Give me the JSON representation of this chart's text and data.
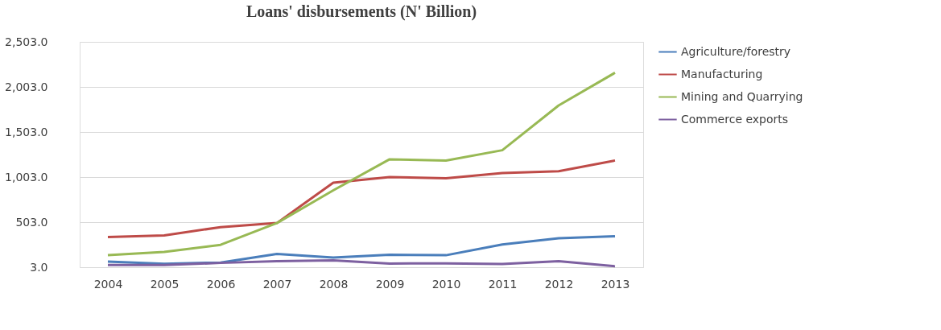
{
  "chart_data": {
    "type": "line",
    "title": "Loans' disbursements (N' Billion)",
    "categories": [
      "2004",
      "2005",
      "2006",
      "2007",
      "2008",
      "2009",
      "2010",
      "2011",
      "2012",
      "2013"
    ],
    "series": [
      {
        "name": "Agriculture/forestry",
        "color": "#4a7ebb",
        "values": [
          65,
          41,
          55,
          151,
          110,
          141,
          136,
          255,
          325,
          346
        ]
      },
      {
        "name": "Manufacturing",
        "color": "#be4b48",
        "values": [
          338,
          355,
          448,
          493,
          941,
          1003,
          990,
          1047,
          1068,
          1187
        ]
      },
      {
        "name": "Mining and Quarrying",
        "color": "#98b954",
        "values": [
          138,
          172,
          251,
          493,
          855,
          1200,
          1186,
          1301,
          1798,
          2160
        ]
      },
      {
        "name": "Commerce exports",
        "color": "#7d60a0",
        "values": [
          27,
          27,
          51,
          69,
          79,
          44,
          45,
          38,
          70,
          13
        ]
      }
    ],
    "ylim": [
      3,
      2503
    ],
    "yticks": [
      {
        "value": 3,
        "label": "3.0"
      },
      {
        "value": 503,
        "label": "503.0"
      },
      {
        "value": 1003,
        "label": "1,003.0"
      },
      {
        "value": 1503,
        "label": "1,503.0"
      },
      {
        "value": 2003,
        "label": "2,003.0"
      },
      {
        "value": 2503,
        "label": "2,503.0"
      }
    ],
    "grid": "y",
    "legend": "top right",
    "marker": "none",
    "line_style": "solid"
  }
}
